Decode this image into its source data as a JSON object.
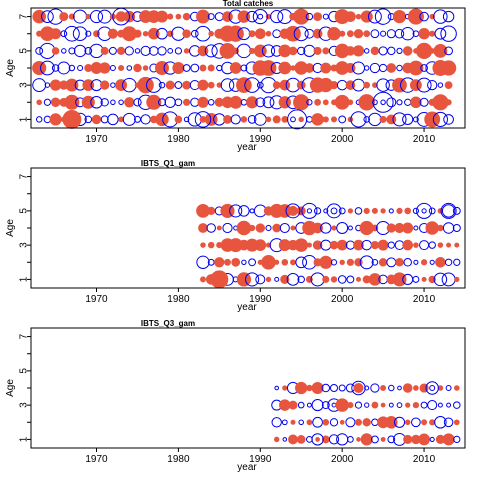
{
  "chart_data": [
    {
      "type": "scatter",
      "title": "Total catches",
      "xlabel": "year",
      "ylabel": "Age",
      "xlim": [
        1962,
        2015
      ],
      "ylim": [
        0.5,
        7.5
      ],
      "x_ticks": [
        1970,
        1980,
        1990,
        2000,
        2010
      ],
      "y_ticks": [
        1,
        3,
        5,
        7
      ],
      "ages": [
        1,
        2,
        3,
        4,
        5,
        6,
        7
      ],
      "years": [
        1963,
        2013
      ],
      "encoding": "bubble: filled red = positive residual, open blue = negative residual",
      "seed": 11,
      "density": 1.0,
      "max_r": 10,
      "big_points": [
        [
          1994.5,
          1,
          -0.9
        ],
        [
          2005,
          2,
          -1.0
        ],
        [
          1973,
          7,
          -0.7
        ],
        [
          1983,
          1,
          -0.6
        ],
        [
          1967,
          1,
          0.8
        ],
        [
          1990,
          7,
          -0.5
        ]
      ]
    },
    {
      "type": "scatter",
      "title": "IBTS_Q1_gam",
      "xlabel": "year",
      "ylabel": "Age",
      "xlim": [
        1962,
        2015
      ],
      "ylim": [
        0.5,
        7.5
      ],
      "x_ticks": [
        1970,
        1980,
        1990,
        2000,
        2010
      ],
      "y_ticks": [
        1,
        3,
        5,
        7
      ],
      "ages": [
        1,
        2,
        3,
        4,
        5
      ],
      "years": [
        1983,
        2014
      ],
      "encoding": "bubble: filled red = positive residual, open blue = negative residual",
      "seed": 29,
      "density": 1.0,
      "max_r": 9,
      "big_points": [
        [
          1985,
          1,
          0.9
        ],
        [
          1996,
          5,
          -0.7
        ],
        [
          2013,
          5,
          -0.7
        ],
        [
          2010,
          5,
          -0.7
        ],
        [
          1994,
          5,
          -0.6
        ],
        [
          1999,
          5,
          -0.6
        ]
      ]
    },
    {
      "type": "scatter",
      "title": "IBTS_Q3_gam",
      "xlabel": "year",
      "ylabel": "Age",
      "xlim": [
        1962,
        2015
      ],
      "ylim": [
        0.5,
        7.5
      ],
      "x_ticks": [
        1970,
        1980,
        1990,
        2000,
        2010
      ],
      "y_ticks": [
        1,
        3,
        5,
        7
      ],
      "ages": [
        1,
        2,
        3,
        4
      ],
      "years": [
        1992,
        2014
      ],
      "encoding": "bubble: filled red = positive residual, open blue = negative residual",
      "seed": 47,
      "density": 1.0,
      "max_r": 8,
      "big_points": [
        [
          2002,
          4,
          -0.7
        ],
        [
          2011,
          4,
          -0.6
        ],
        [
          1999,
          3,
          -0.6
        ],
        [
          1997,
          1,
          -0.5
        ],
        [
          2000,
          3,
          0.6
        ]
      ]
    }
  ],
  "colors": {
    "positive": "#e8553f",
    "negative": "#0000ee",
    "axis": "#000000"
  }
}
